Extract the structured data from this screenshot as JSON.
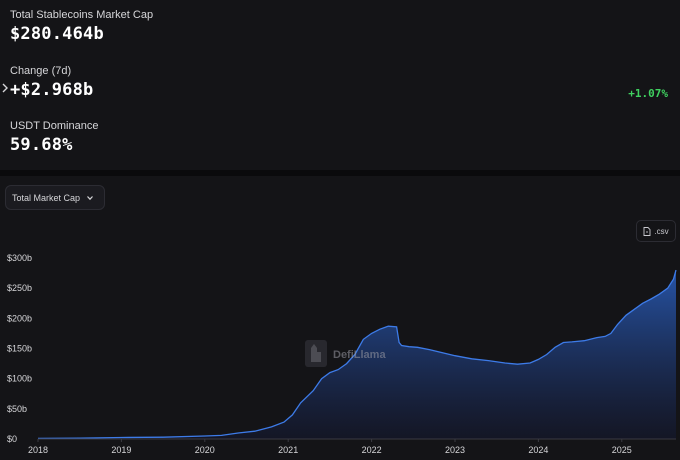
{
  "stats": {
    "market_cap": {
      "label": "Total Stablecoins Market Cap",
      "value": "$280.464b"
    },
    "change": {
      "label": "Change (7d)",
      "value": "+$2.968b",
      "percent": "+1.07%"
    },
    "dominance": {
      "label": "USDT Dominance",
      "value": "59.68%"
    }
  },
  "chart_controls": {
    "selector_label": "Total Market Cap",
    "csv_label": ".csv"
  },
  "watermark": {
    "text": "DefiLlama"
  },
  "colors": {
    "accent": "#2f6fd8",
    "positive": "#3fd15f",
    "panel": "#141417"
  },
  "chart_data": {
    "type": "area",
    "title": "",
    "xlabel": "",
    "ylabel": "",
    "x_tick_labels": [
      "2018",
      "2019",
      "2020",
      "2021",
      "2022",
      "2023",
      "2024",
      "2025"
    ],
    "y_tick_labels": [
      "$0",
      "$50b",
      "$100b",
      "$150b",
      "$200b",
      "$250b",
      "$300b"
    ],
    "y_ticks": [
      0,
      50,
      100,
      150,
      200,
      250,
      300
    ],
    "ylim": [
      0,
      300
    ],
    "xlim": [
      2018.0,
      2025.65
    ],
    "grid": false,
    "series": [
      {
        "unit": "billion USD",
        "x": [
          2018.0,
          2018.5,
          2019.0,
          2019.5,
          2020.0,
          2020.2,
          2020.4,
          2020.6,
          2020.8,
          2020.95,
          2021.05,
          2021.15,
          2021.3,
          2021.4,
          2021.5,
          2021.6,
          2021.7,
          2021.8,
          2021.9,
          2022.0,
          2022.1,
          2022.2,
          2022.3,
          2022.33,
          2022.36,
          2022.45,
          2022.55,
          2022.7,
          2022.85,
          2023.0,
          2023.2,
          2023.4,
          2023.6,
          2023.75,
          2023.9,
          2024.0,
          2024.1,
          2024.2,
          2024.3,
          2024.4,
          2024.55,
          2024.7,
          2024.8,
          2024.87,
          2024.95,
          2025.05,
          2025.15,
          2025.25,
          2025.35,
          2025.45,
          2025.55,
          2025.62,
          2025.65
        ],
        "y": [
          1,
          1.5,
          2.5,
          3,
          5,
          6,
          10,
          13,
          20,
          28,
          40,
          60,
          80,
          100,
          110,
          115,
          125,
          140,
          165,
          175,
          182,
          187,
          186,
          160,
          155,
          153,
          152,
          148,
          143,
          138,
          133,
          130,
          126,
          124,
          126,
          132,
          140,
          152,
          160,
          161,
          163,
          168,
          170,
          175,
          190,
          205,
          215,
          225,
          232,
          240,
          250,
          265,
          280
        ]
      }
    ]
  }
}
